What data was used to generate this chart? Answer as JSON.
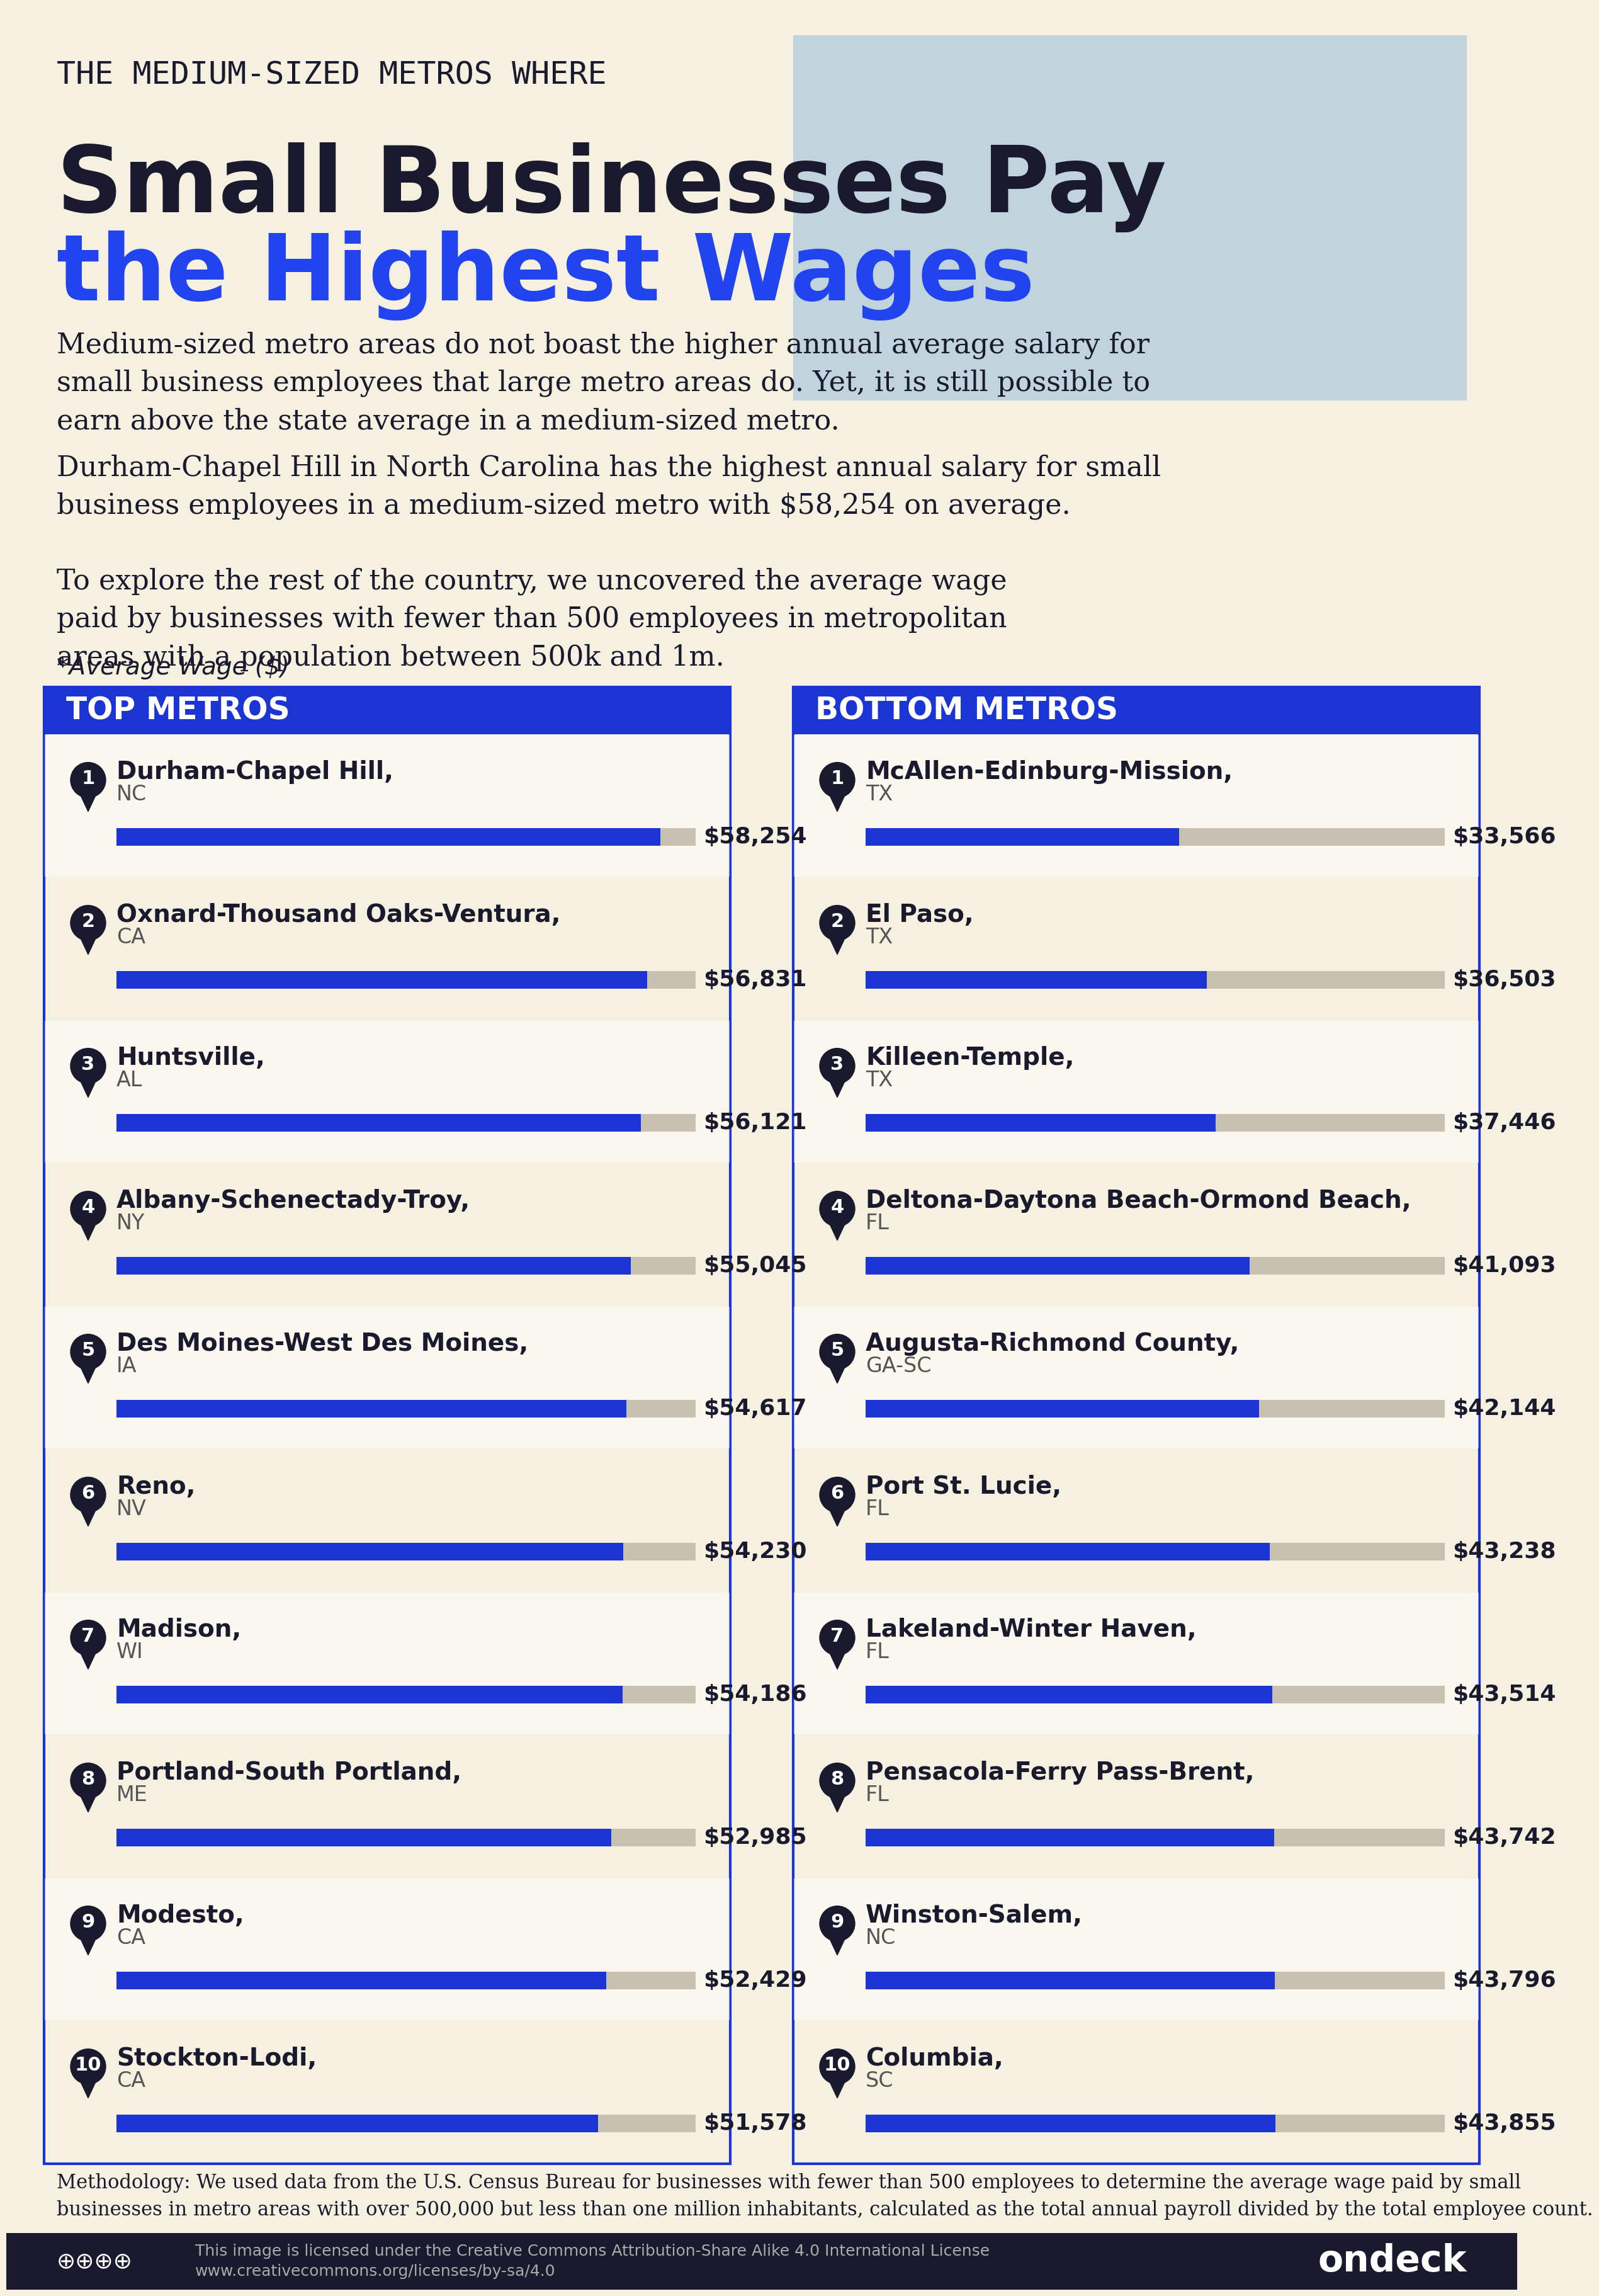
{
  "bg_color": "#f5f0e0",
  "title_line1": "THE MEDIUM-SIZED METROS WHERE",
  "title_line2": "Small Businesses Pay",
  "title_line3": "the Highest Wages",
  "subtitle1": "Medium-sized metro areas do not boast the higher annual average salary for\nsmall business employees that large metro areas do. Yet, it is still possible to\nearn above the state average in a medium-sized metro.",
  "subtitle2": "Durham-Chapel Hill in North Carolina has the highest annual salary for small\nbusiness employees in a medium-sized metro with $58,254 on average.",
  "subtitle3": "To explore the rest of the country, we uncovered the average wage\npaid by businesses with fewer than 500 employees in metropolitan\nareas with a population between 500k and 1m.",
  "avg_wage_label": "*Average Wage ($)",
  "top_header": "TOP METROS",
  "bottom_header": "BOTTOM METROS",
  "top_metros": [
    {
      "rank": 1,
      "city": "Durham-Chapel Hill,",
      "state": "NC",
      "value": 58254
    },
    {
      "rank": 2,
      "city": "Oxnard-Thousand Oaks-Ventura,",
      "state": "CA",
      "value": 56831
    },
    {
      "rank": 3,
      "city": "Huntsville,",
      "state": "AL",
      "value": 56121
    },
    {
      "rank": 4,
      "city": "Albany-Schenectady-Troy,",
      "state": "NY",
      "value": 55045
    },
    {
      "rank": 5,
      "city": "Des Moines-West Des Moines,",
      "state": "IA",
      "value": 54617
    },
    {
      "rank": 6,
      "city": "Reno,",
      "state": "NV",
      "value": 54230
    },
    {
      "rank": 7,
      "city": "Madison,",
      "state": "WI",
      "value": 54186
    },
    {
      "rank": 8,
      "city": "Portland-South Portland,",
      "state": "ME",
      "value": 52985
    },
    {
      "rank": 9,
      "city": "Modesto,",
      "state": "CA",
      "value": 52429
    },
    {
      "rank": 10,
      "city": "Stockton-Lodi,",
      "state": "CA",
      "value": 51578
    }
  ],
  "bottom_metros": [
    {
      "rank": 1,
      "city": "McAllen-Edinburg-Mission,",
      "state": "TX",
      "value": 33566
    },
    {
      "rank": 2,
      "city": "El Paso,",
      "state": "TX",
      "value": 36503
    },
    {
      "rank": 3,
      "city": "Killeen-Temple,",
      "state": "TX",
      "value": 37446
    },
    {
      "rank": 4,
      "city": "Deltona-Daytona Beach-Ormond Beach,",
      "state": "FL",
      "value": 41093
    },
    {
      "rank": 5,
      "city": "Augusta-Richmond County,",
      "state": "GA-SC",
      "value": 42144
    },
    {
      "rank": 6,
      "city": "Port St. Lucie,",
      "state": "FL",
      "value": 43238
    },
    {
      "rank": 7,
      "city": "Lakeland-Winter Haven,",
      "state": "FL",
      "value": 43514
    },
    {
      "rank": 8,
      "city": "Pensacola-Ferry Pass-Brent,",
      "state": "FL",
      "value": 43742
    },
    {
      "rank": 9,
      "city": "Winston-Salem,",
      "state": "NC",
      "value": 43796
    },
    {
      "rank": 10,
      "city": "Columbia,",
      "state": "SC",
      "value": 43855
    }
  ],
  "blue_bar_color": "#1a35d4",
  "gray_bar_color": "#c8c0b0",
  "header_blue": "#1a35d4",
  "header_text_color": "#ffffff",
  "rank_badge_color": "#1a1a2e",
  "methodology_text": "Methodology: We used data from the U.S. Census Bureau for businesses with fewer than 500 employees to determine the average wage paid by small\nbusinesses in metro areas with over 500,000 but less than one million inhabitants, calculated as the total annual payroll divided by the total employee count.",
  "footer_bg": "#1a1a2e",
  "footer_brand": "ondeck",
  "footer_license": "This image is licensed under the Creative Commons Attribution-Share Alike 4.0 International License\nwww.creativecommons.org/licenses/by-sa/4.0"
}
